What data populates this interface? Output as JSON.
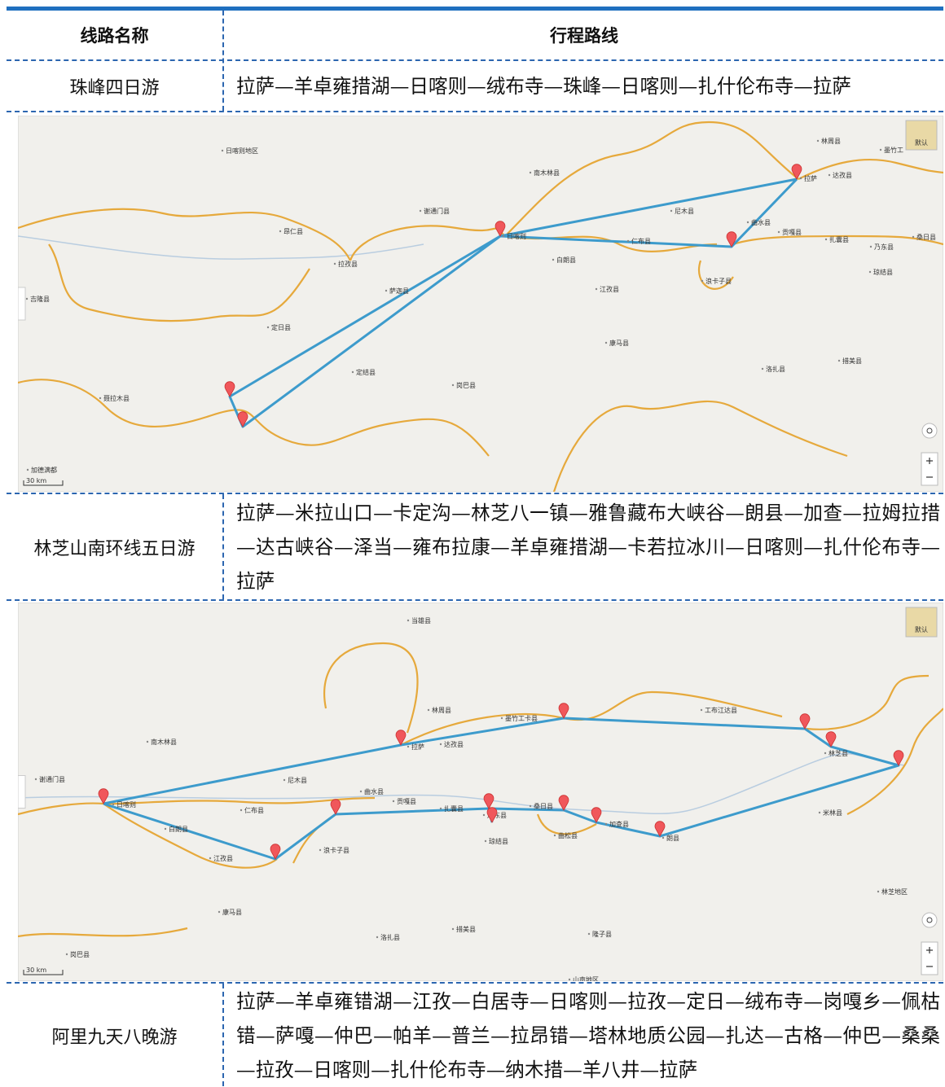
{
  "table": {
    "header": [
      "线路名称",
      "行程路线"
    ],
    "rows": [
      [
        "珠峰四日游",
        "拉萨—羊卓雍措湖—日喀则—绒布寺—珠峰—日喀则—扎什伦布寺—拉萨"
      ],
      [
        "林芝山南环线五日游",
        "拉萨—米拉山口—卡定沟—林芝八一镇—雅鲁藏布大峡谷—朗县—加查—拉姆拉措—达古峡谷—泽当—雍布拉康—羊卓雍措湖—卡若拉冰川—日喀则—扎什伦布寺—拉萨"
      ],
      [
        "阿里九天八晚游",
        "拉萨—羊卓雍错湖—江孜—白居寺—日喀则—拉孜—定日—绒布寺—岗嘎乡—佩枯错—萨嘎—仲巴—帕羊—普兰—拉昂错—塔林地质公园—扎达—古格—仲巴—桑桑—拉孜—日喀则—扎什伦布寺—纳木措—羊八井—拉萨"
      ]
    ]
  },
  "maps": [
    {
      "button": "默认",
      "scale": "30 km",
      "labels": [
        "日喀则地区",
        "南木林县",
        "林周县",
        "墨竹工",
        "拉萨",
        "达孜县",
        "谢通门县",
        "尼木县",
        "昂仁县",
        "日喀则",
        "曲水县",
        "贡嘎县",
        "扎囊县",
        "乃东县",
        "桑日县",
        "仁布县",
        "拉孜县",
        "白朗县",
        "琼结县",
        "浪卡子县",
        "萨迦县",
        "江孜县",
        "吉隆县",
        "定日县",
        "康马县",
        "洛扎县",
        "措美县",
        "定结县",
        "岗巴县",
        "聂拉木县",
        "加德满都"
      ]
    },
    {
      "button": "默认",
      "scale": "30 km",
      "labels": [
        "当雄县",
        "林周县",
        "墨竹工卡县",
        "工布江达县",
        "南木林县",
        "拉萨",
        "达孜县",
        "林芝县",
        "谢通门县",
        "尼木县",
        "曲水县",
        "贡嘎县",
        "日喀则",
        "扎囊县",
        "桑日县",
        "乃东县",
        "仁布县",
        "加查县",
        "米林县",
        "白朗县",
        "曲松县",
        "琼结县",
        "朗县",
        "浪卡子县",
        "江孜县",
        "林芝地区",
        "康马县",
        "措美县",
        "洛扎县",
        "隆子县",
        "岗巴县",
        "山南地区"
      ]
    }
  ]
}
